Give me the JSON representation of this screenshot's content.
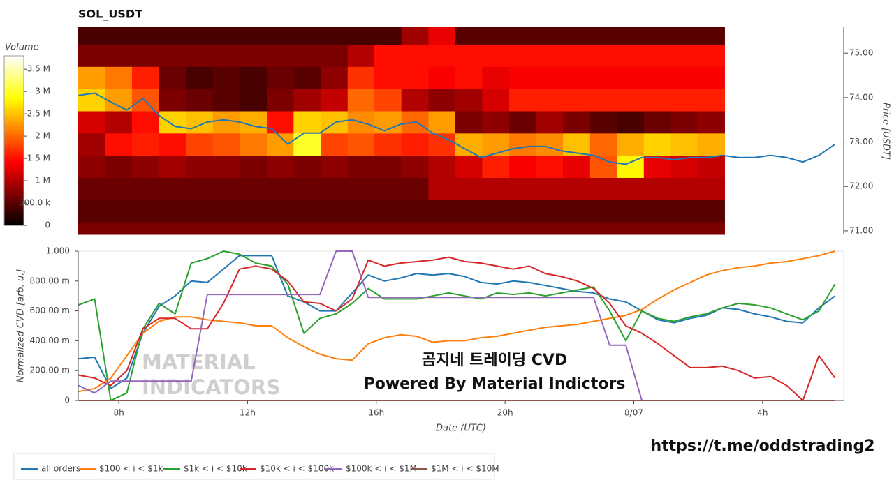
{
  "chart_data": [
    {
      "type": "heatmap",
      "title": "SOL_USDT",
      "colorbar_title": "Volume",
      "colormap": "hot",
      "xlim": [
        6.74,
        30.52
      ],
      "time_bins": [
        6.74,
        7.58,
        8.41,
        9.25,
        10.09,
        10.92,
        11.76,
        12.6,
        13.43,
        14.27,
        15.11,
        15.94,
        16.78,
        17.62,
        18.45,
        19.29,
        20.13,
        20.96,
        21.8,
        22.64,
        23.47,
        24.31,
        25.15,
        25.98,
        26.82
      ],
      "price_bins": [
        70.92,
        71.2,
        71.7,
        72.2,
        72.7,
        73.2,
        73.7,
        74.2,
        74.7,
        75.2,
        75.6
      ],
      "z": [
        [
          700000,
          700000,
          700000,
          700000,
          700000,
          700000,
          700000,
          700000,
          700000,
          700000,
          700000,
          700000,
          700000,
          700000,
          700000,
          700000,
          700000,
          700000,
          700000,
          700000,
          700000,
          700000,
          700000,
          700000
        ],
        [
          500000,
          500000,
          500000,
          500000,
          500000,
          500000,
          500000,
          500000,
          500000,
          500000,
          500000,
          500000,
          500000,
          500000,
          500000,
          500000,
          500000,
          500000,
          500000,
          500000,
          500000,
          500000,
          500000,
          500000
        ],
        [
          600000,
          600000,
          600000,
          600000,
          600000,
          600000,
          600000,
          600000,
          600000,
          600000,
          600000,
          600000,
          600000,
          1000000,
          1000000,
          1000000,
          1000000,
          1000000,
          1000000,
          1000000,
          1000000,
          1000000,
          1000000,
          1000000
        ],
        [
          800000,
          700000,
          800000,
          900000,
          800000,
          800000,
          700000,
          800000,
          700000,
          800000,
          700000,
          700000,
          800000,
          1000000,
          1200000,
          1600000,
          1400000,
          1500000,
          1300000,
          1900000,
          2800000,
          1300000,
          1200000,
          1100000
        ],
        [
          900000,
          1500000,
          1600000,
          1500000,
          1800000,
          1900000,
          2100000,
          2300000,
          3000000,
          1800000,
          1900000,
          1700000,
          1600000,
          1700000,
          2400000,
          2300000,
          2100000,
          2200000,
          2500000,
          2000000,
          2400000,
          2600000,
          2500000,
          2400000
        ],
        [
          1200000,
          1000000,
          1500000,
          2600000,
          2500000,
          2300000,
          2400000,
          1500000,
          2600000,
          2500000,
          2200000,
          2300000,
          2000000,
          2300000,
          700000,
          800000,
          600000,
          900000,
          700000,
          500000,
          400000,
          600000,
          700000,
          800000
        ],
        [
          2600000,
          2300000,
          1900000,
          700000,
          600000,
          500000,
          400000,
          700000,
          900000,
          1100000,
          2000000,
          1800000,
          1000000,
          800000,
          900000,
          1200000,
          1600000,
          1600000,
          1600000,
          1600000,
          1600000,
          1600000,
          1600000,
          1600000
        ],
        [
          2300000,
          2100000,
          1600000,
          600000,
          400000,
          500000,
          400000,
          600000,
          500000,
          800000,
          1700000,
          1500000,
          1500000,
          1400000,
          1500000,
          1300000,
          1400000,
          1400000,
          1400000,
          1400000,
          1400000,
          1400000,
          1400000,
          1400000
        ],
        [
          700000,
          700000,
          700000,
          700000,
          700000,
          700000,
          700000,
          700000,
          700000,
          700000,
          1000000,
          1500000,
          1500000,
          1500000,
          1500000,
          1500000,
          1500000,
          1500000,
          1500000,
          1500000,
          1500000,
          1500000,
          1500000,
          1500000
        ],
        [
          400000,
          400000,
          400000,
          400000,
          400000,
          400000,
          400000,
          400000,
          400000,
          400000,
          400000,
          400000,
          900000,
          1300000,
          500000,
          500000,
          500000,
          500000,
          500000,
          500000,
          500000,
          500000,
          500000,
          500000
        ]
      ],
      "zlim": [
        0,
        3800000
      ],
      "zticks": [
        0,
        {
          "value": 500000,
          "label": "500.0 k"
        },
        {
          "value": 1000000,
          "label": "1 M"
        },
        {
          "value": 1500000,
          "label": "1.5 M"
        },
        {
          "value": 2000000,
          "label": "2 M"
        },
        {
          "value": 2500000,
          "label": "2.5 M"
        },
        {
          "value": 3000000,
          "label": "3 M"
        },
        {
          "value": 3500000,
          "label": "3.5 M"
        }
      ],
      "ylim": [
        70.92,
        75.6
      ],
      "y_label": "Price [USDT]",
      "yticks": [
        {
          "value": 71,
          "label": "71.00"
        },
        {
          "value": 72,
          "label": "72.00"
        },
        {
          "value": 73,
          "label": "73.00"
        },
        {
          "value": 74,
          "label": "74.00"
        },
        {
          "value": 75,
          "label": "75.00"
        }
      ],
      "price_line": {
        "color": "#1f77b4",
        "x": [
          6.75,
          7.25,
          7.75,
          8.25,
          8.75,
          9.25,
          9.75,
          10.25,
          10.75,
          11.25,
          11.75,
          12.25,
          12.75,
          13.25,
          13.75,
          14.25,
          14.75,
          15.25,
          15.75,
          16.25,
          16.75,
          17.25,
          17.75,
          18.25,
          18.75,
          19.25,
          19.75,
          20.25,
          20.75,
          21.25,
          21.75,
          22.25,
          22.75,
          23.25,
          23.75,
          24.25,
          24.75,
          25.25,
          25.75,
          26.25,
          26.75,
          27.25,
          27.75,
          28.25,
          28.75,
          29.25,
          29.75,
          30.25
        ],
        "values": [
          74.05,
          74.1,
          73.9,
          73.72,
          73.98,
          73.6,
          73.35,
          73.3,
          73.45,
          73.5,
          73.45,
          73.35,
          73.3,
          72.95,
          73.2,
          73.2,
          73.45,
          73.5,
          73.4,
          73.25,
          73.4,
          73.45,
          73.2,
          73.05,
          72.85,
          72.65,
          72.75,
          72.85,
          72.9,
          72.9,
          72.8,
          72.75,
          72.7,
          72.55,
          72.5,
          72.65,
          72.65,
          72.6,
          72.65,
          72.65,
          72.7,
          72.65,
          72.65,
          72.7,
          72.65,
          72.55,
          72.7,
          72.95
        ]
      }
    },
    {
      "type": "line",
      "x_label": "Date (UTC)",
      "y_label": "Normalized CVD [arb. u.]",
      "legend": "bottom",
      "xlim": [
        6.74,
        30.52
      ],
      "xticks": [
        {
          "value": 8,
          "label": "8h"
        },
        {
          "value": 12,
          "label": "12h"
        },
        {
          "value": 16,
          "label": "16h"
        },
        {
          "value": 20,
          "label": "20h"
        },
        {
          "value": 24,
          "label": "8/07"
        },
        {
          "value": 28,
          "label": "4h"
        }
      ],
      "ylim": [
        0,
        1
      ],
      "yticks": [
        0,
        {
          "value": 0.2,
          "label": "200.00 m"
        },
        {
          "value": 0.4,
          "label": "400.00 m"
        },
        {
          "value": 0.6,
          "label": "600.00 m"
        },
        {
          "value": 0.8,
          "label": "800.00 m"
        },
        {
          "value": 1,
          "label": "1.000"
        }
      ],
      "x": [
        6.75,
        7.25,
        7.75,
        8.25,
        8.75,
        9.25,
        9.75,
        10.25,
        10.75,
        11.25,
        11.75,
        12.25,
        12.75,
        13.25,
        13.75,
        14.25,
        14.75,
        15.25,
        15.75,
        16.25,
        16.75,
        17.25,
        17.75,
        18.25,
        18.75,
        19.25,
        19.75,
        20.25,
        20.75,
        21.25,
        21.75,
        22.25,
        22.75,
        23.25,
        23.75,
        24.25,
        24.75,
        25.25,
        25.75,
        26.25,
        26.75,
        27.25,
        27.75,
        28.25,
        28.75,
        29.25,
        29.75,
        30.25
      ],
      "series": [
        {
          "name": "all orders",
          "color": "#1f77b4",
          "values": [
            0.28,
            0.29,
            0.08,
            0.15,
            0.45,
            0.63,
            0.7,
            0.8,
            0.79,
            0.88,
            0.97,
            0.97,
            0.97,
            0.7,
            0.66,
            0.6,
            0.6,
            0.72,
            0.84,
            0.8,
            0.82,
            0.85,
            0.84,
            0.85,
            0.83,
            0.79,
            0.78,
            0.8,
            0.79,
            0.77,
            0.75,
            0.73,
            0.72,
            0.68,
            0.66,
            0.6,
            0.54,
            0.52,
            0.55,
            0.57,
            0.62,
            0.61,
            0.58,
            0.56,
            0.53,
            0.52,
            0.62,
            0.7
          ]
        },
        {
          "name": "$100 < i < $1k",
          "color": "#ff7f0e",
          "values": [
            0.06,
            0.08,
            0.15,
            0.3,
            0.45,
            0.53,
            0.56,
            0.56,
            0.54,
            0.53,
            0.52,
            0.5,
            0.5,
            0.42,
            0.36,
            0.31,
            0.28,
            0.27,
            0.38,
            0.42,
            0.44,
            0.43,
            0.39,
            0.4,
            0.4,
            0.42,
            0.43,
            0.45,
            0.47,
            0.49,
            0.5,
            0.51,
            0.53,
            0.55,
            0.57,
            0.61,
            0.68,
            0.74,
            0.79,
            0.84,
            0.87,
            0.89,
            0.9,
            0.92,
            0.93,
            0.95,
            0.97,
            1.0
          ]
        },
        {
          "name": "$1k < i < $10k",
          "color": "#2ca02c",
          "values": [
            0.64,
            0.68,
            0.0,
            0.05,
            0.48,
            0.65,
            0.58,
            0.92,
            0.95,
            1.0,
            0.98,
            0.92,
            0.9,
            0.78,
            0.45,
            0.55,
            0.58,
            0.65,
            0.75,
            0.68,
            0.68,
            0.68,
            0.7,
            0.72,
            0.7,
            0.68,
            0.72,
            0.71,
            0.72,
            0.7,
            0.72,
            0.74,
            0.76,
            0.6,
            0.4,
            0.6,
            0.55,
            0.53,
            0.56,
            0.58,
            0.62,
            0.65,
            0.64,
            0.62,
            0.58,
            0.54,
            0.6,
            0.78
          ]
        },
        {
          "name": "$10k < i < $100k",
          "color": "#d62728",
          "values": [
            0.17,
            0.15,
            0.1,
            0.2,
            0.48,
            0.55,
            0.55,
            0.48,
            0.48,
            0.65,
            0.88,
            0.9,
            0.88,
            0.8,
            0.66,
            0.65,
            0.6,
            0.68,
            0.94,
            0.9,
            0.92,
            0.93,
            0.94,
            0.96,
            0.93,
            0.92,
            0.9,
            0.88,
            0.9,
            0.85,
            0.83,
            0.8,
            0.75,
            0.65,
            0.5,
            0.45,
            0.38,
            0.3,
            0.22,
            0.22,
            0.23,
            0.2,
            0.15,
            0.16,
            0.1,
            0.0,
            0.3,
            0.15
          ]
        },
        {
          "name": "$100k < i < $1M",
          "color": "#9467bd",
          "values": [
            0.1,
            0.05,
            0.13,
            0.13,
            0.13,
            0.13,
            0.13,
            0.13,
            0.71,
            0.71,
            0.71,
            0.71,
            0.71,
            0.71,
            0.71,
            0.71,
            1.0,
            1.0,
            0.69,
            0.69,
            0.69,
            0.69,
            0.69,
            0.69,
            0.69,
            0.69,
            0.69,
            0.69,
            0.69,
            0.69,
            0.69,
            0.69,
            0.69,
            0.37,
            0.37,
            0,
            0,
            0,
            0,
            0,
            0,
            0,
            0,
            0,
            0,
            0,
            0,
            0
          ]
        },
        {
          "name": "$1M < i < $10M",
          "color": "#8c564b",
          "values": [
            0,
            0,
            0,
            0,
            0,
            0,
            0,
            0,
            0,
            0,
            0,
            0,
            0,
            0,
            0,
            0,
            0,
            0,
            0,
            0,
            0,
            0,
            0,
            0,
            0,
            0,
            0,
            0,
            0,
            0,
            0,
            0,
            0,
            0,
            0,
            0,
            0,
            0,
            0,
            0,
            0,
            0,
            0,
            0,
            0,
            0,
            0,
            0
          ]
        }
      ]
    }
  ],
  "watermark": [
    "MATERIAL",
    "INDICATORS"
  ],
  "overlay": [
    "곰지네 트레이딩 CVD",
    "Powered By Material Indictors"
  ],
  "link": "https://t.me/oddstrading2"
}
